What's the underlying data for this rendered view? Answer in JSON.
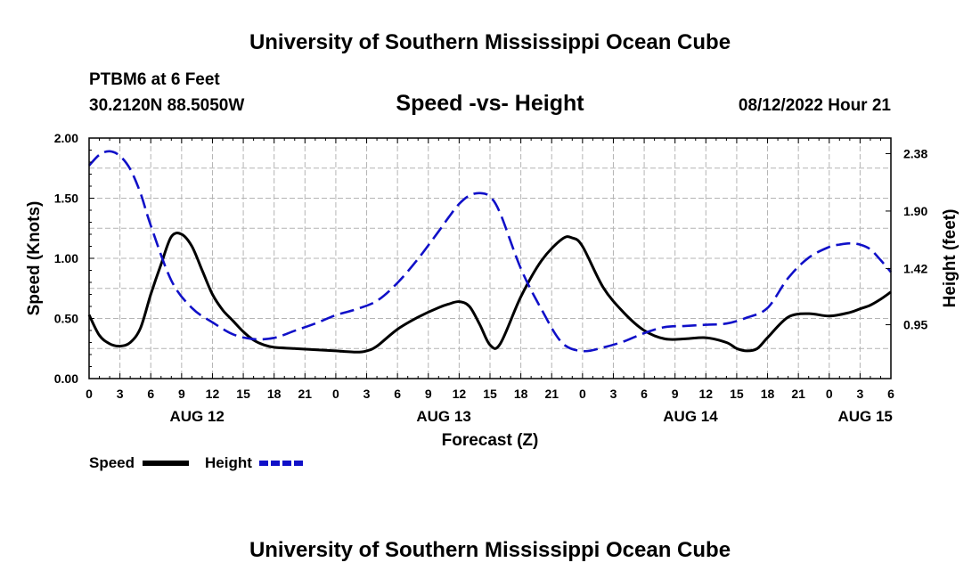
{
  "header": {
    "title": "University of Southern Mississippi Ocean Cube",
    "station": "PTBM6 at 6 Feet",
    "coords": "30.2120N  88.5050W",
    "chart_title": "Speed -vs- Height",
    "timestamp": "08/12/2022 Hour 21"
  },
  "footer": {
    "title": "University of Southern Mississippi Ocean Cube"
  },
  "legend": {
    "speed_label": "Speed",
    "height_label": "Height"
  },
  "colors": {
    "speed": "#000000",
    "height": "#1010c8",
    "grid": "#b4b4b4"
  },
  "chart_data": {
    "type": "line",
    "title": "Speed -vs- Height",
    "xlabel": "Forecast (Z)",
    "ylabel": "Speed (Knots)",
    "y2label": "Height (feet)",
    "x_unit": "hours since 08/12/2022 00Z",
    "xlim": [
      0,
      78
    ],
    "ylim": [
      0,
      2.0
    ],
    "y2lim": [
      0.5,
      2.51
    ],
    "x_ticks": [
      0,
      3,
      6,
      9,
      12,
      15,
      18,
      21,
      24,
      27,
      30,
      33,
      36,
      39,
      42,
      45,
      48,
      51,
      54,
      57,
      60,
      63,
      66,
      69,
      72,
      75,
      78
    ],
    "x_tick_labels": [
      "0",
      "3",
      "6",
      "9",
      "12",
      "15",
      "18",
      "21",
      "0",
      "3",
      "6",
      "9",
      "12",
      "15",
      "18",
      "21",
      "0",
      "3",
      "6",
      "9",
      "12",
      "15",
      "18",
      "21",
      "0",
      "3",
      "6"
    ],
    "date_labels": [
      {
        "x": 10.5,
        "text": "AUG 12"
      },
      {
        "x": 34.5,
        "text": "AUG 13"
      },
      {
        "x": 58.5,
        "text": "AUG 14"
      },
      {
        "x": 75.5,
        "text": "AUG 15"
      }
    ],
    "y_ticks": [
      0.0,
      0.5,
      1.0,
      1.5,
      2.0
    ],
    "y_tick_labels": [
      "0.00",
      "0.50",
      "1.00",
      "1.50",
      "2.00"
    ],
    "y2_ticks": [
      0.95,
      1.42,
      1.9,
      2.38
    ],
    "y2_tick_labels": [
      "0.95",
      "1.42",
      "1.90",
      "2.38"
    ],
    "series": [
      {
        "name": "Speed",
        "axis": "left",
        "style": "solid",
        "x": [
          0,
          1,
          2,
          3,
          4,
          5,
          6,
          7,
          8,
          9,
          10,
          11,
          12,
          13,
          14,
          15,
          16,
          17,
          18,
          20,
          22,
          24,
          26,
          27,
          28,
          30,
          32,
          34,
          35,
          36,
          37,
          38,
          39,
          40,
          42,
          44,
          46,
          47,
          48,
          50,
          52,
          54,
          56,
          58,
          60,
          62,
          63,
          64,
          65,
          66,
          68,
          70,
          72,
          74,
          75,
          76,
          77,
          78
        ],
        "values": [
          0.53,
          0.36,
          0.29,
          0.27,
          0.3,
          0.42,
          0.7,
          0.95,
          1.18,
          1.2,
          1.1,
          0.9,
          0.7,
          0.57,
          0.48,
          0.39,
          0.32,
          0.28,
          0.26,
          0.25,
          0.24,
          0.23,
          0.22,
          0.23,
          0.27,
          0.41,
          0.51,
          0.59,
          0.62,
          0.64,
          0.6,
          0.45,
          0.28,
          0.29,
          0.68,
          0.98,
          1.16,
          1.17,
          1.1,
          0.76,
          0.55,
          0.4,
          0.33,
          0.33,
          0.34,
          0.3,
          0.25,
          0.23,
          0.25,
          0.34,
          0.51,
          0.54,
          0.52,
          0.55,
          0.58,
          0.61,
          0.66,
          0.72
        ]
      },
      {
        "name": "Height",
        "axis": "right",
        "style": "dashed",
        "x": [
          0,
          1,
          2,
          3,
          4,
          5,
          6,
          8,
          10,
          12,
          14,
          16,
          18,
          20,
          22,
          24,
          26,
          28,
          30,
          32,
          34,
          35,
          36,
          37,
          38,
          39,
          40,
          42,
          44,
          46,
          48,
          50,
          52,
          54,
          56,
          58,
          60,
          62,
          64,
          66,
          68,
          70,
          72,
          73,
          74,
          75,
          76,
          77,
          78
        ],
        "values": [
          2.28,
          2.37,
          2.4,
          2.36,
          2.25,
          2.05,
          1.78,
          1.32,
          1.09,
          0.97,
          0.87,
          0.83,
          0.84,
          0.9,
          0.96,
          1.03,
          1.08,
          1.15,
          1.3,
          1.5,
          1.73,
          1.85,
          1.96,
          2.03,
          2.05,
          2.02,
          1.88,
          1.42,
          1.08,
          0.8,
          0.73,
          0.76,
          0.81,
          0.88,
          0.93,
          0.94,
          0.95,
          0.96,
          1.01,
          1.09,
          1.34,
          1.51,
          1.6,
          1.62,
          1.63,
          1.62,
          1.58,
          1.49,
          1.39
        ]
      }
    ]
  }
}
